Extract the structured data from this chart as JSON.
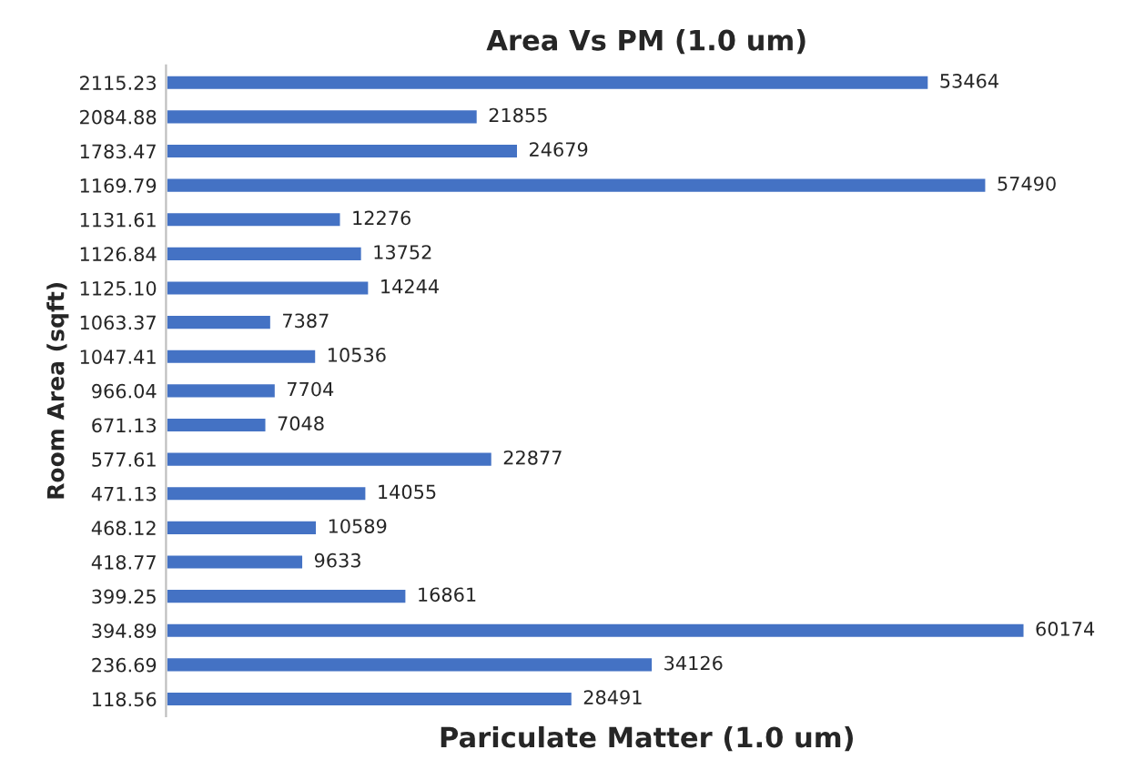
{
  "chart_data": {
    "type": "bar",
    "orientation": "horizontal",
    "title": "Area Vs PM (1.0 um)",
    "xlabel": "Pariculate Matter (1.0 um)",
    "ylabel": "Room Area (sqft)",
    "categories": [
      "2115.23",
      "2084.88",
      "1783.47",
      "1169.79",
      "1131.61",
      "1126.84",
      "1125.10",
      "1063.37",
      "1047.41",
      "966.04",
      "671.13",
      "577.61",
      "471.13",
      "468.12",
      "418.77",
      "399.25",
      "394.89",
      "236.69",
      "118.56"
    ],
    "values": [
      53464,
      21855,
      24679,
      57490,
      12276,
      13752,
      14244,
      7387,
      10536,
      7704,
      7048,
      22877,
      14055,
      10589,
      9633,
      16861,
      60174,
      34126,
      28491
    ],
    "color": "#4472c4",
    "data_labels": true,
    "tick_labels": "y",
    "grid": false,
    "legend": false
  }
}
